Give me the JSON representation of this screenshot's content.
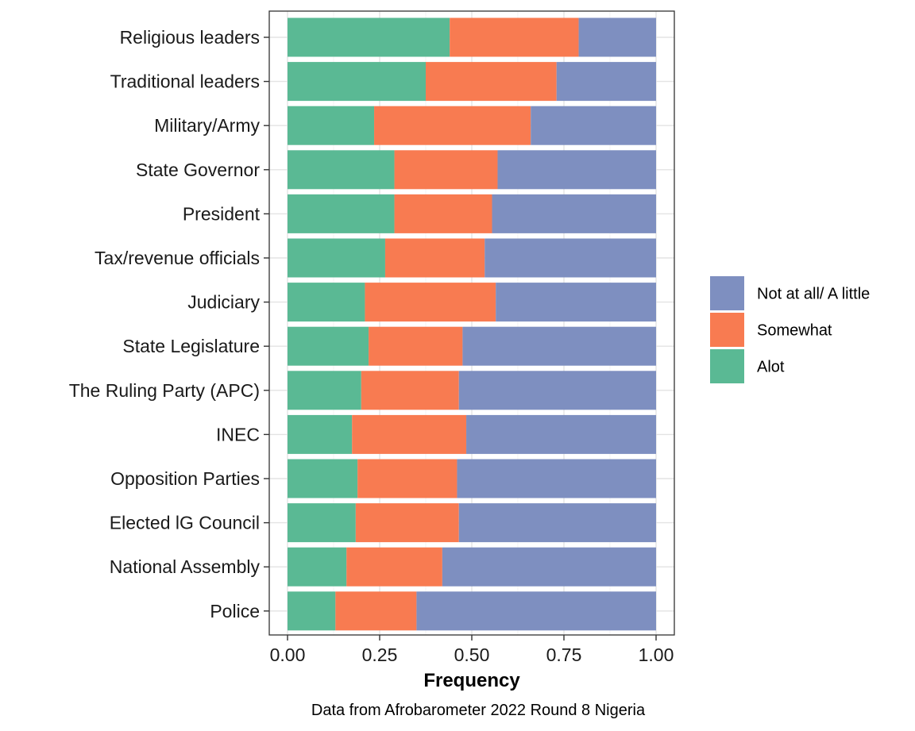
{
  "chart_data": {
    "type": "bar",
    "orientation": "horizontal",
    "stacked": true,
    "xlabel": "Frequency",
    "caption": "Data from Afrobarometer 2022 Round 8 Nigeria",
    "xlim": [
      0,
      1
    ],
    "x_ticks": [
      "0.00",
      "0.25",
      "0.50",
      "0.75",
      "1.00"
    ],
    "x_tick_values": [
      0,
      0.25,
      0.5,
      0.75,
      1
    ],
    "grid": true,
    "legend_position": "right",
    "categories": [
      "Religious leaders",
      "Traditional leaders",
      "Military/Army",
      "State Governor",
      "President",
      "Tax/revenue officials",
      "Judiciary",
      "State Legislature",
      "The Ruling Party (APC)",
      "INEC",
      "Opposition Parties",
      "Elected lG Council",
      "National Assembly",
      "Police"
    ],
    "series": [
      {
        "name": "Alot",
        "color": "#5ab994",
        "values": [
          0.44,
          0.375,
          0.235,
          0.29,
          0.29,
          0.265,
          0.21,
          0.22,
          0.2,
          0.175,
          0.19,
          0.185,
          0.16,
          0.13
        ]
      },
      {
        "name": "Somewhat",
        "color": "#f87b51",
        "values": [
          0.35,
          0.355,
          0.425,
          0.28,
          0.265,
          0.27,
          0.355,
          0.255,
          0.265,
          0.31,
          0.27,
          0.28,
          0.26,
          0.22
        ]
      },
      {
        "name": "Not at all/ A little",
        "color": "#7e8fc0",
        "values": [
          0.21,
          0.27,
          0.34,
          0.43,
          0.445,
          0.465,
          0.435,
          0.525,
          0.535,
          0.515,
          0.54,
          0.535,
          0.58,
          0.65
        ]
      }
    ],
    "legend_order": [
      "Not at all/ A little",
      "Somewhat",
      "Alot"
    ]
  }
}
